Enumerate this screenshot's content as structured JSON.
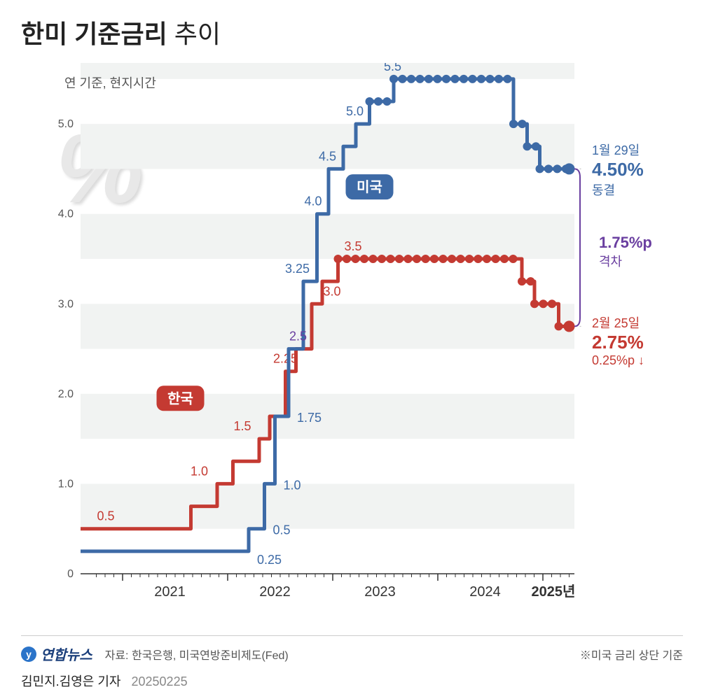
{
  "title_bold": "한미 기준금리",
  "title_thin": "추이",
  "subtitle": "연 기준, 현지시간",
  "percent_symbol": "%",
  "chart": {
    "type": "step-line",
    "background_color": "#ffffff",
    "band_color": "#f1f3f2",
    "grid_color": "#e0e0e0",
    "axis_color": "#333333",
    "x": {
      "min": 2020.6,
      "max": 2025.3,
      "years": [
        2021,
        2022,
        2023,
        2024,
        2025
      ],
      "year_suffix": "년"
    },
    "y": {
      "min": 0,
      "max": 5.6,
      "ticks": [
        0,
        1.0,
        2.0,
        3.0,
        4.0,
        5.0
      ],
      "label_fontsize": 16,
      "label_color": "#555"
    },
    "series": {
      "korea": {
        "label": "한국",
        "color": "#c43a32",
        "line_width": 5,
        "dot_radius": 6,
        "steps": [
          {
            "t": 2020.6,
            "v": 0.5
          },
          {
            "t": 2021.65,
            "v": 0.75
          },
          {
            "t": 2021.9,
            "v": 1.0
          },
          {
            "t": 2022.05,
            "v": 1.25
          },
          {
            "t": 2022.3,
            "v": 1.5
          },
          {
            "t": 2022.4,
            "v": 1.75
          },
          {
            "t": 2022.55,
            "v": 2.25
          },
          {
            "t": 2022.65,
            "v": 2.5
          },
          {
            "t": 2022.8,
            "v": 3.0
          },
          {
            "t": 2022.9,
            "v": 3.25
          },
          {
            "t": 2023.05,
            "v": 3.5
          },
          {
            "t": 2024.8,
            "v": 3.25
          },
          {
            "t": 2024.92,
            "v": 3.0
          },
          {
            "t": 2025.15,
            "v": 2.75
          }
        ],
        "value_labels": [
          {
            "t": 2020.85,
            "v": 0.5,
            "text": "0.5",
            "dx": -14,
            "dy": -12
          },
          {
            "t": 2021.78,
            "v": 1.0,
            "text": "1.0",
            "dx": -20,
            "dy": -12
          },
          {
            "t": 2022.15,
            "v": 1.5,
            "text": "1.5",
            "dx": -14,
            "dy": -12
          },
          {
            "t": 2022.58,
            "v": 2.25,
            "text": "2.25",
            "dx": -22,
            "dy": -12
          },
          {
            "t": 2022.83,
            "v": 3.0,
            "text": "3.0",
            "dx": 12,
            "dy": -12
          },
          {
            "t": 2023.15,
            "v": 3.5,
            "text": "3.5",
            "dx": -6,
            "dy": -12
          }
        ],
        "dots_from": 2023.05
      },
      "us": {
        "label": "미국",
        "color": "#3d6aa6",
        "line_width": 5,
        "dot_radius": 6,
        "steps": [
          {
            "t": 2020.6,
            "v": 0.25
          },
          {
            "t": 2022.2,
            "v": 0.5
          },
          {
            "t": 2022.35,
            "v": 1.0
          },
          {
            "t": 2022.45,
            "v": 1.75
          },
          {
            "t": 2022.58,
            "v": 2.5
          },
          {
            "t": 2022.72,
            "v": 3.25
          },
          {
            "t": 2022.85,
            "v": 4.0
          },
          {
            "t": 2022.96,
            "v": 4.5
          },
          {
            "t": 2023.1,
            "v": 4.75
          },
          {
            "t": 2023.22,
            "v": 5.0
          },
          {
            "t": 2023.35,
            "v": 5.25
          },
          {
            "t": 2023.58,
            "v": 5.5
          },
          {
            "t": 2024.72,
            "v": 5.0
          },
          {
            "t": 2024.85,
            "v": 4.75
          },
          {
            "t": 2024.97,
            "v": 4.5
          }
        ],
        "value_labels": [
          {
            "t": 2022.2,
            "v": 0.25,
            "text": "0.25",
            "dx": 12,
            "dy": 18
          },
          {
            "t": 2022.35,
            "v": 0.5,
            "text": "0.5",
            "dx": 12,
            "dy": 8
          },
          {
            "t": 2022.45,
            "v": 1.0,
            "text": "1.0",
            "dx": 12,
            "dy": 8
          },
          {
            "t": 2022.58,
            "v": 1.75,
            "text": "1.75",
            "dx": 12,
            "dy": 8
          },
          {
            "t": 2022.68,
            "v": 2.5,
            "text": "2.5",
            "dx": -14,
            "dy": -12,
            "alt_color": "#6a3fa0"
          },
          {
            "t": 2022.72,
            "v": 3.25,
            "text": "3.25",
            "dx": -26,
            "dy": -12
          },
          {
            "t": 2022.85,
            "v": 4.0,
            "text": "4.0",
            "dx": -18,
            "dy": -12
          },
          {
            "t": 2022.96,
            "v": 4.5,
            "text": "4.5",
            "dx": -14,
            "dy": -12
          },
          {
            "t": 2023.22,
            "v": 5.0,
            "text": "5.0",
            "dx": -14,
            "dy": -12
          },
          {
            "t": 2023.58,
            "v": 5.5,
            "text": "5.5",
            "dx": -14,
            "dy": -12
          }
        ],
        "dots_from": 2023.35
      }
    },
    "legend_pills": {
      "korea": {
        "t": 2021.55,
        "v": 1.95
      },
      "us": {
        "t": 2023.35,
        "v": 4.3
      }
    }
  },
  "right_annotations": {
    "us": {
      "date": "1월 29일",
      "value": "4.50%",
      "note": "동결",
      "color": "#3d6aa6",
      "y_at": 4.5
    },
    "gap": {
      "value": "1.75%p",
      "note": "격차",
      "color": "#6a3fa0",
      "top_v": 4.5,
      "bot_v": 2.75
    },
    "kr": {
      "date": "2월 25일",
      "value": "2.75%",
      "note": "0.25%p ↓",
      "color": "#c43a32",
      "y_at": 2.75
    }
  },
  "footer": {
    "logo_badge": "y",
    "logo_text": "연합뉴스",
    "source_prefix": "자료:",
    "source": "한국은행, 미국연방준비제도(Fed)",
    "note": "※미국 금리 상단 기준"
  },
  "credit": {
    "authors": "김민지.김영은 기자",
    "date": "20250225"
  }
}
